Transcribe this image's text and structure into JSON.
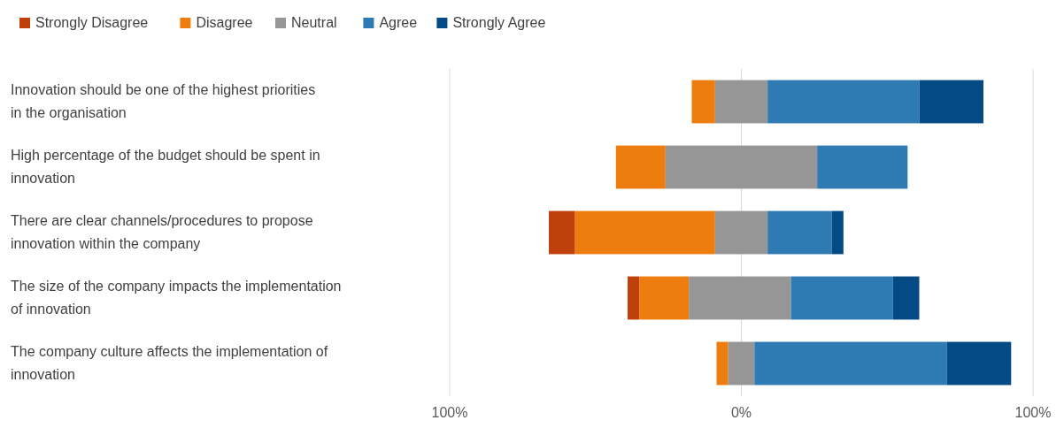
{
  "chart_data": {
    "type": "bar",
    "orientation": "horizontal",
    "categories": [
      "Innovation should be one of the highest priorities in the organisation",
      "High percentage of the budget should be spent in innovation",
      "There are clear channels/procedures to propose innovation within the company",
      "The size of the company impacts the implementation of innovation",
      "The company culture affects the implementation of innovation"
    ],
    "series": [
      {
        "name": "Strongly Disagree",
        "color": "#c0400b",
        "values": [
          null,
          null,
          9,
          4,
          null
        ],
        "base": [
          null,
          null,
          -66,
          -39,
          null
        ]
      },
      {
        "name": "Disagree",
        "color": "#ed7d0e",
        "values": [
          8,
          17,
          48,
          17,
          4
        ],
        "base": [
          -17,
          -43,
          -57,
          -35,
          -8.5
        ]
      },
      {
        "name": "Neutral",
        "color": "#969696",
        "values": [
          18,
          52,
          18,
          35,
          9
        ],
        "base": [
          -9,
          -26,
          -9,
          -18,
          -4.5
        ]
      },
      {
        "name": "Agree",
        "color": "#2e7bb4",
        "values": [
          52,
          31,
          22,
          35,
          66
        ],
        "base": [
          9,
          26,
          9,
          17,
          4.5
        ]
      },
      {
        "name": "Strongly Agree",
        "color": "#044a84",
        "values": [
          22,
          null,
          4,
          9,
          22
        ],
        "base": [
          61,
          null,
          31,
          52,
          70.5
        ]
      }
    ],
    "xlim": [
      -100,
      100
    ],
    "xticks": [
      {
        "value": -100,
        "label": "100%"
      },
      {
        "value": 0,
        "label": "0%"
      },
      {
        "value": 100,
        "label": "100%"
      }
    ],
    "grid": "x",
    "legend": "top left"
  }
}
